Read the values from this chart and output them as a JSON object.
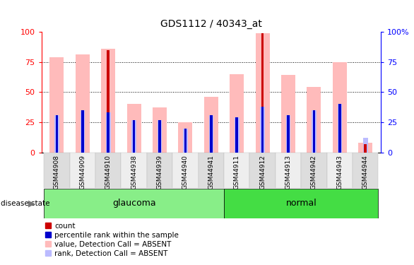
{
  "title": "GDS1112 / 40343_at",
  "samples": [
    "GSM44908",
    "GSM44909",
    "GSM44910",
    "GSM44938",
    "GSM44939",
    "GSM44940",
    "GSM44941",
    "GSM44911",
    "GSM44912",
    "GSM44913",
    "GSM44942",
    "GSM44943",
    "GSM44944"
  ],
  "disease_state": [
    "glaucoma",
    "glaucoma",
    "glaucoma",
    "glaucoma",
    "glaucoma",
    "glaucoma",
    "glaucoma",
    "normal",
    "normal",
    "normal",
    "normal",
    "normal",
    "normal"
  ],
  "count_values": [
    0,
    0,
    85,
    0,
    0,
    0,
    0,
    0,
    99,
    0,
    0,
    0,
    7
  ],
  "percentile_values": [
    31,
    35,
    33,
    27,
    27,
    20,
    31,
    29,
    38,
    31,
    35,
    40,
    0
  ],
  "value_absent": [
    79,
    81,
    86,
    40,
    37,
    25,
    46,
    65,
    99,
    64,
    54,
    75,
    8
  ],
  "rank_absent": [
    31,
    35,
    33,
    27,
    27,
    20,
    31,
    29,
    38,
    31,
    35,
    40,
    12
  ],
  "ylim": [
    0,
    100
  ],
  "glaucoma_color": "#88ee88",
  "normal_color": "#44dd44",
  "count_color": "#cc0000",
  "percentile_color": "#0000cc",
  "value_absent_color": "#ffbbbb",
  "rank_absent_color": "#bbbbff",
  "xtick_bg_even": "#dddddd",
  "xtick_bg_odd": "#eeeeee",
  "dotted_grid": [
    25,
    50,
    75
  ],
  "legend_items": [
    {
      "label": "count",
      "color": "#cc0000"
    },
    {
      "label": "percentile rank within the sample",
      "color": "#0000cc"
    },
    {
      "label": "value, Detection Call = ABSENT",
      "color": "#ffbbbb"
    },
    {
      "label": "rank, Detection Call = ABSENT",
      "color": "#bbbbff"
    }
  ]
}
